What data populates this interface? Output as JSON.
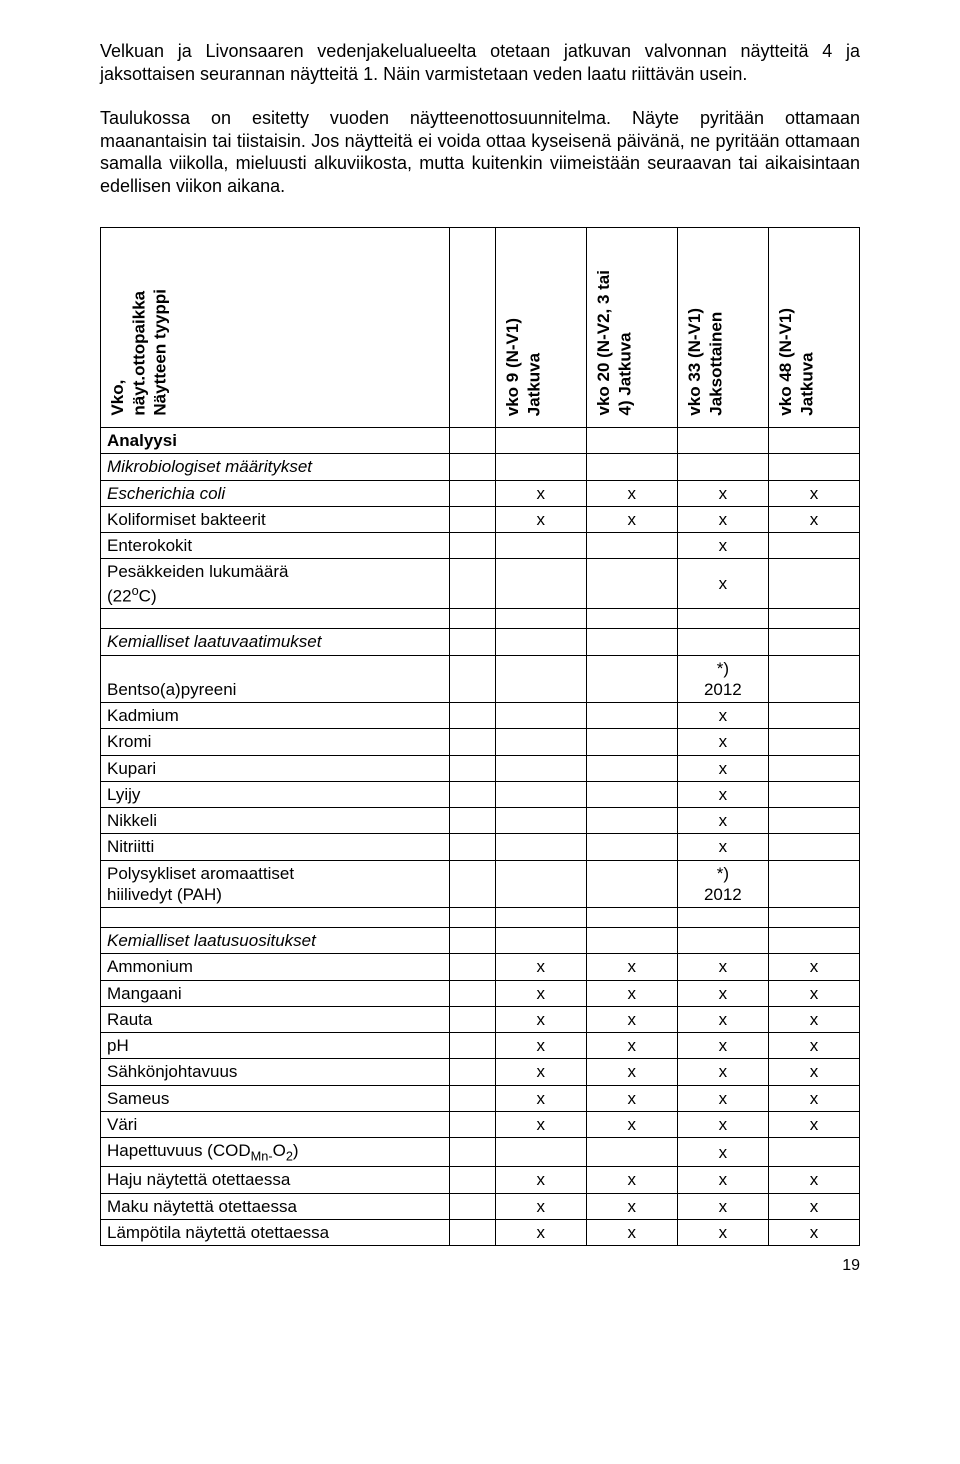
{
  "paragraphs": {
    "p1": "Velkuan ja Livonsaaren vedenjakelualueelta otetaan jatkuvan valvonnan näytteitä 4 ja jaksottaisen seurannan näytteitä 1. Näin varmistetaan veden laatu riittävän usein.",
    "p2": "Taulukossa on esitetty vuoden näytteenottosuunnitelma. Näyte pyritään ottamaan maanantaisin tai tiistaisin. Jos näytteitä ei voida ottaa kyseisenä päivänä, ne pyritään ottamaan samalla viikolla, mieluusti alkuviikosta, mutta kuitenkin viimeistään seuraavan tai aikaisintaan edellisen viikon aikana."
  },
  "headers": {
    "h1a": "Vko,",
    "h1b": "näyt.ottopaikka",
    "h1c": "Näytteen tyyppi",
    "h2a": "vko 9 (N-V1)",
    "h2b": "Jatkuva",
    "h3a": "vko 20 (N-V2, 3 tai",
    "h3b": "4) Jatkuva",
    "h4a": "vko 33 (N-V1)",
    "h4b": "Jaksottainen",
    "h5a": "vko 48 (N-V1)",
    "h5b": "Jatkuva"
  },
  "rows": {
    "analyysi": "Analyysi",
    "mikro": "Mikrobiologiset määritykset",
    "ecoli": {
      "label": "Escherichia coli",
      "v": [
        "x",
        "x",
        "x",
        "x"
      ]
    },
    "koli": {
      "label": "Koliformiset bakteerit",
      "v": [
        "x",
        "x",
        "x",
        "x"
      ]
    },
    "entero": {
      "label": "Enterokokit",
      "v": [
        "",
        "",
        "x",
        ""
      ]
    },
    "pesak": {
      "label_a": "Pesäkkeiden lukumäärä",
      "label_b": "(22",
      "label_c": "C)",
      "v": [
        "",
        "",
        "x",
        ""
      ]
    },
    "kem_vaat": "Kemialliset laatuvaatimukset",
    "bentso": {
      "label": "Bentso(a)pyreeni",
      "v": [
        "",
        "",
        "*)\n2012",
        ""
      ]
    },
    "kadm": {
      "label": "Kadmium",
      "v": [
        "",
        "",
        "x",
        ""
      ]
    },
    "kromi": {
      "label": "Kromi",
      "v": [
        "",
        "",
        "x",
        ""
      ]
    },
    "kupari": {
      "label": "Kupari",
      "v": [
        "",
        "",
        "x",
        ""
      ]
    },
    "lyijy": {
      "label": "Lyijy",
      "v": [
        "",
        "",
        "x",
        ""
      ]
    },
    "nikkeli": {
      "label": "Nikkeli",
      "v": [
        "",
        "",
        "x",
        ""
      ]
    },
    "nitr": {
      "label": "Nitriitti",
      "v": [
        "",
        "",
        "x",
        ""
      ]
    },
    "pah": {
      "label_a": "Polysykliset aromaattiset",
      "label_b": "hiilivedyt (PAH)",
      "v": [
        "",
        "",
        "*)\n2012",
        ""
      ]
    },
    "kem_suos": "Kemialliset laatusuositukset",
    "ammon": {
      "label": "Ammonium",
      "v": [
        "x",
        "x",
        "x",
        "x"
      ]
    },
    "mang": {
      "label": "Mangaani",
      "v": [
        "x",
        "x",
        "x",
        "x"
      ]
    },
    "rauta": {
      "label": "Rauta",
      "v": [
        "x",
        "x",
        "x",
        "x"
      ]
    },
    "ph": {
      "label": "pH",
      "v": [
        "x",
        "x",
        "x",
        "x"
      ]
    },
    "sahko": {
      "label": "Sähkönjohtavuus",
      "v": [
        "x",
        "x",
        "x",
        "x"
      ]
    },
    "sameus": {
      "label": "Sameus",
      "v": [
        "x",
        "x",
        "x",
        "x"
      ]
    },
    "vari": {
      "label": "Väri",
      "v": [
        "x",
        "x",
        "x",
        "x"
      ]
    },
    "hapet": {
      "label_a": "Hapettuvuus (COD",
      "label_b": "Mn-",
      "label_c": "O",
      "label_d": "2",
      "label_e": ")",
      "v": [
        "",
        "",
        "x",
        ""
      ]
    },
    "haju": {
      "label": "Haju näytettä otettaessa",
      "v": [
        "x",
        "x",
        "x",
        "x"
      ]
    },
    "maku": {
      "label": "Maku näytettä otettaessa",
      "v": [
        "x",
        "x",
        "x",
        "x"
      ]
    },
    "lampo": {
      "label": "Lämpötila näytettä otettaessa",
      "v": [
        "x",
        "x",
        "x",
        "x"
      ]
    }
  },
  "page_number": "19"
}
